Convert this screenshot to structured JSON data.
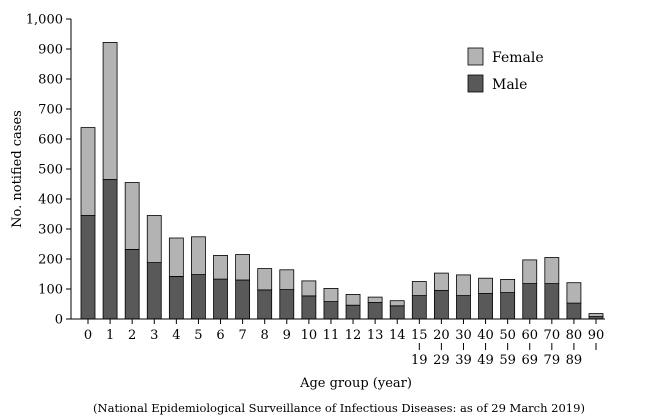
{
  "chart_data": {
    "type": "bar",
    "stacked": true,
    "title": "",
    "ylabel": "No. notified cases",
    "xlabel": "Age group (year)",
    "ylim": [
      0,
      1000
    ],
    "yticks": [
      "0",
      "100",
      "200",
      "300",
      "400",
      "500",
      "600",
      "700",
      "800",
      "900",
      "1,000"
    ],
    "categories": [
      {
        "top": "0",
        "bottom": ""
      },
      {
        "top": "1",
        "bottom": ""
      },
      {
        "top": "2",
        "bottom": ""
      },
      {
        "top": "3",
        "bottom": ""
      },
      {
        "top": "4",
        "bottom": ""
      },
      {
        "top": "5",
        "bottom": ""
      },
      {
        "top": "6",
        "bottom": ""
      },
      {
        "top": "7",
        "bottom": ""
      },
      {
        "top": "8",
        "bottom": ""
      },
      {
        "top": "9",
        "bottom": ""
      },
      {
        "top": "10",
        "bottom": ""
      },
      {
        "top": "11",
        "bottom": ""
      },
      {
        "top": "12",
        "bottom": ""
      },
      {
        "top": "13",
        "bottom": ""
      },
      {
        "top": "14",
        "bottom": ""
      },
      {
        "top": "15",
        "bottom": "19"
      },
      {
        "top": "20",
        "bottom": "29"
      },
      {
        "top": "30",
        "bottom": "39"
      },
      {
        "top": "40",
        "bottom": "49"
      },
      {
        "top": "50",
        "bottom": "59"
      },
      {
        "top": "60",
        "bottom": "69"
      },
      {
        "top": "70",
        "bottom": "79"
      },
      {
        "top": "80",
        "bottom": "89"
      },
      {
        "top": "90",
        "bottom": ""
      }
    ],
    "series": [
      {
        "name": "Male",
        "color": "#595959",
        "values": [
          345,
          465,
          232,
          188,
          142,
          148,
          133,
          130,
          97,
          98,
          77,
          58,
          46,
          55,
          44,
          78,
          95,
          78,
          85,
          88,
          118,
          118,
          53,
          8
        ]
      },
      {
        "name": "Female",
        "color": "#b3b3b3",
        "values": [
          293,
          457,
          223,
          157,
          128,
          126,
          79,
          85,
          71,
          66,
          50,
          44,
          36,
          18,
          17,
          47,
          58,
          69,
          51,
          44,
          79,
          87,
          68,
          10
        ]
      }
    ],
    "legend": {
      "position": "top-right",
      "order": [
        "Female",
        "Male"
      ]
    },
    "grid": false,
    "source": "(National Epidemiological Surveillance of Infectious Diseases: as of 29 March 2019)"
  }
}
